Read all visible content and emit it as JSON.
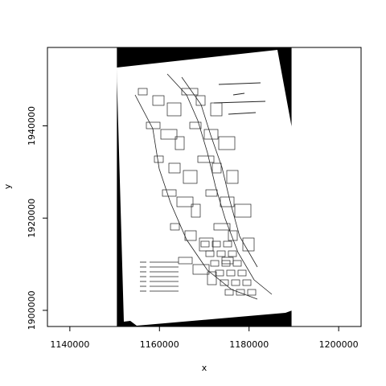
{
  "chart_data": {
    "type": "raster",
    "xlabel": "x",
    "ylabel": "y",
    "xlim": [
      1135000,
      1205000
    ],
    "ylim": [
      1896500,
      1957000
    ],
    "x_ticks": [
      1140000,
      1160000,
      1180000,
      1200000
    ],
    "x_tick_labels": [
      "1140000",
      "1160000",
      "1180000",
      "1200000"
    ],
    "y_ticks": [
      1900000,
      1920000,
      1940000
    ],
    "y_tick_labels": [
      "1900000",
      "1920000",
      "1940000"
    ],
    "raster_extent": {
      "xmin": 1150500,
      "xmax": 1189500
    },
    "grid": false,
    "legend": "none",
    "colors": {
      "raster_fill": "#000000",
      "map_paper": "#ffffff",
      "linework": "#222222"
    }
  }
}
